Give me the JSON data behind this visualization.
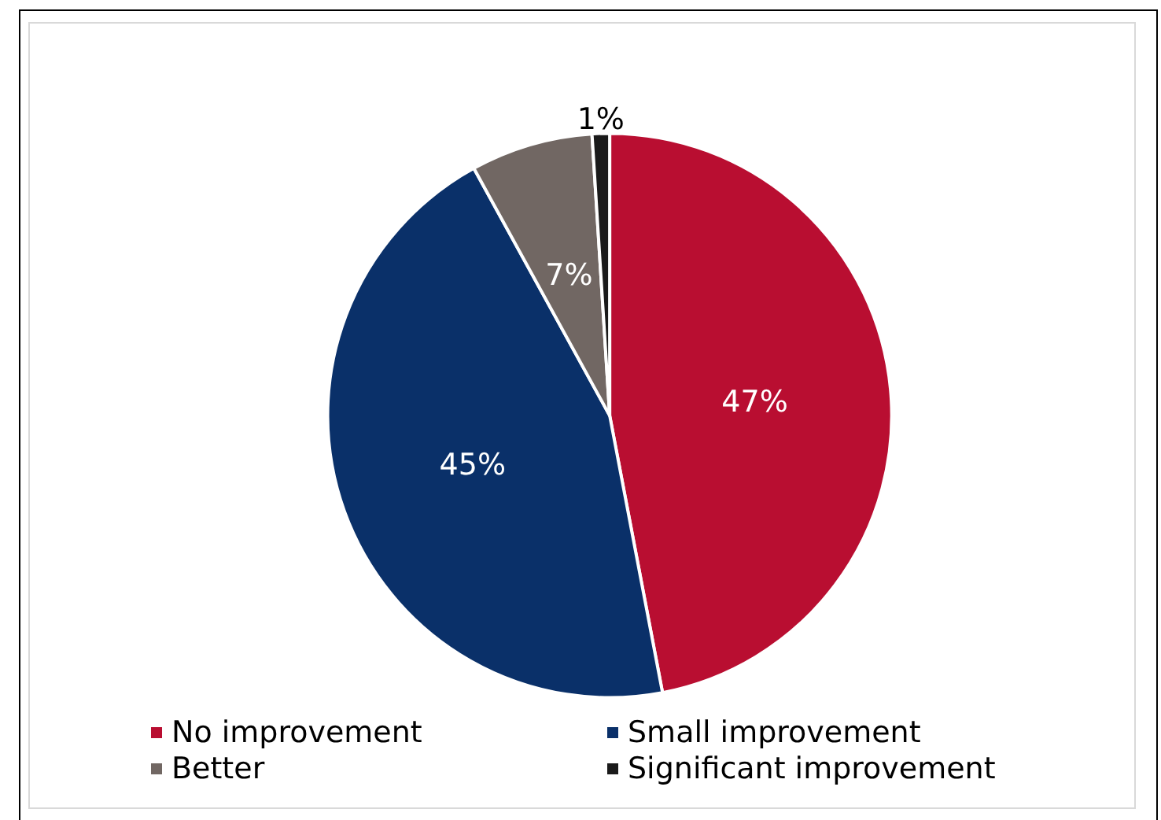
{
  "chart_data": {
    "type": "pie",
    "categories": [
      "No improvement",
      "Small improvement",
      "Better",
      "Significant improvement"
    ],
    "values": [
      47,
      45,
      7,
      1
    ],
    "colors": [
      "#b90e31",
      "#0a3069",
      "#716763",
      "#1a1a1a"
    ],
    "value_labels": [
      "47%",
      "45%",
      "7%",
      "1%"
    ],
    "legend": "bottom"
  }
}
